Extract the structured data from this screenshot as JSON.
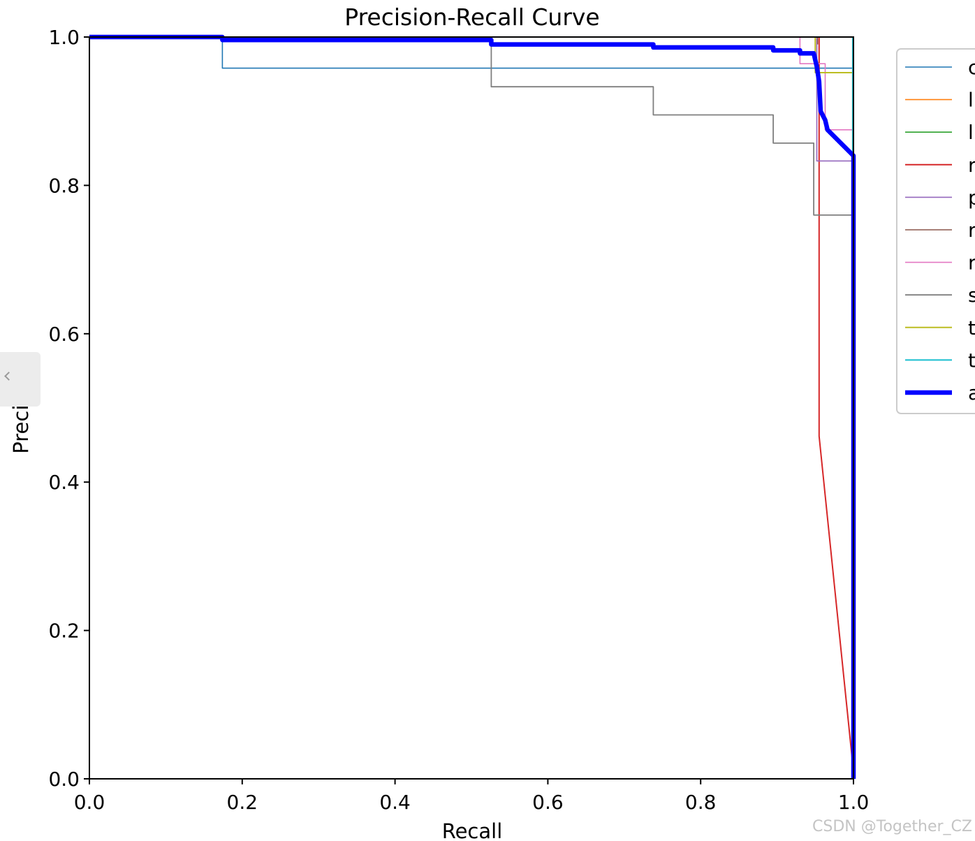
{
  "chart_data": {
    "type": "line",
    "title": "Precision-Recall Curve",
    "xlabel": "Recall",
    "ylabel": "Precision",
    "xlim": [
      0,
      1
    ],
    "ylim": [
      0,
      1
    ],
    "xticks": [
      "0.0",
      "0.2",
      "0.4",
      "0.6",
      "0.8",
      "1.0"
    ],
    "yticks": [
      "0.0",
      "0.2",
      "0.4",
      "0.6",
      "0.8",
      "1.0"
    ],
    "legend_position": "upper-right-outside",
    "legend_visible_labels": [
      "c",
      "l",
      "l",
      "r",
      "p",
      "r",
      "r",
      "s",
      "t",
      "t",
      "a"
    ],
    "series": [
      {
        "name": "c",
        "color": "#1f77b4",
        "width": 1.6,
        "points": [
          [
            0,
            1
          ],
          [
            0.174,
            1
          ],
          [
            0.174,
            0.958
          ],
          [
            0.999,
            0.958
          ],
          [
            0.999,
            0
          ]
        ]
      },
      {
        "name": "l",
        "color": "#ff7f0e",
        "width": 1.6,
        "points": [
          [
            0,
            1
          ],
          [
            1,
            1
          ],
          [
            1,
            0
          ]
        ]
      },
      {
        "name": "l",
        "color": "#2ca02c",
        "width": 1.6,
        "points": [
          [
            0,
            1
          ],
          [
            1,
            1
          ],
          [
            1,
            0
          ]
        ]
      },
      {
        "name": "r",
        "color": "#d62728",
        "width": 2.0,
        "points": [
          [
            0.955,
            1
          ],
          [
            0.955,
            0.462
          ],
          [
            0.999,
            0.02
          ]
        ]
      },
      {
        "name": "p",
        "color": "#9467bd",
        "width": 1.6,
        "points": [
          [
            0.952,
            1
          ],
          [
            0.952,
            0.833
          ],
          [
            0.999,
            0.833
          ],
          [
            0.999,
            0
          ]
        ]
      },
      {
        "name": "r",
        "color": "#8c564b",
        "width": 1.6,
        "points": [
          [
            0.953,
            1
          ],
          [
            0.953,
            0.99
          ]
        ]
      },
      {
        "name": "r",
        "color": "#e377c2",
        "width": 1.6,
        "points": [
          [
            0.93,
            1
          ],
          [
            0.93,
            0.964
          ],
          [
            0.963,
            0.964
          ],
          [
            0.963,
            0.875
          ],
          [
            0.999,
            0.875
          ],
          [
            0.999,
            0
          ]
        ]
      },
      {
        "name": "s",
        "color": "#7f7f7f",
        "width": 1.8,
        "points": [
          [
            0.526,
            1
          ],
          [
            0.526,
            0.933
          ],
          [
            0.738,
            0.933
          ],
          [
            0.738,
            0.895
          ],
          [
            0.895,
            0.895
          ],
          [
            0.895,
            0.857
          ],
          [
            0.948,
            0.857
          ],
          [
            0.948,
            0.76
          ],
          [
            0.999,
            0.76
          ],
          [
            0.999,
            0
          ]
        ]
      },
      {
        "name": "t",
        "color": "#bcbd22",
        "width": 2.0,
        "points": [
          [
            0.95,
            1
          ],
          [
            0.95,
            0.952
          ],
          [
            0.999,
            0.952
          ],
          [
            0.999,
            0
          ]
        ]
      },
      {
        "name": "t",
        "color": "#17becf",
        "width": 2.0,
        "points": [
          [
            0.999,
            1
          ],
          [
            0.999,
            0
          ]
        ]
      },
      {
        "name": "a",
        "color": "#0000ff",
        "width": 6.5,
        "points": [
          [
            0,
            1
          ],
          [
            0.174,
            1
          ],
          [
            0.174,
            0.996
          ],
          [
            0.526,
            0.996
          ],
          [
            0.526,
            0.99
          ],
          [
            0.738,
            0.99
          ],
          [
            0.738,
            0.986
          ],
          [
            0.895,
            0.986
          ],
          [
            0.895,
            0.982
          ],
          [
            0.93,
            0.982
          ],
          [
            0.93,
            0.978
          ],
          [
            0.948,
            0.978
          ],
          [
            0.952,
            0.96
          ],
          [
            0.955,
            0.94
          ],
          [
            0.957,
            0.9
          ],
          [
            0.963,
            0.888
          ],
          [
            0.966,
            0.875
          ],
          [
            1,
            0.84
          ],
          [
            1,
            0
          ]
        ]
      }
    ]
  },
  "watermark": "CSDN @Together_CZ"
}
